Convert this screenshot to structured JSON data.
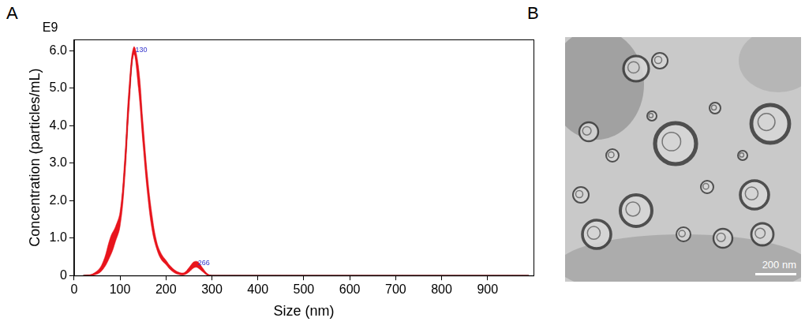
{
  "chart_data": {
    "type": "line",
    "panel": "A",
    "x_label": "Size (nm)",
    "y_label": "Concentration (particles/mL)",
    "y_multiplier": "E9",
    "x": [
      20,
      40,
      60,
      80,
      90,
      100,
      110,
      120,
      130,
      140,
      150,
      160,
      170,
      180,
      190,
      200,
      210,
      220,
      230,
      240,
      250,
      260,
      266,
      270,
      280,
      290,
      300,
      400,
      500,
      600,
      700,
      800,
      900,
      990
    ],
    "series": [
      {
        "color": "#000000",
        "values": [
          0,
          0.02,
          0.2,
          0.8,
          1.1,
          1.5,
          2.8,
          4.8,
          6.0,
          5.3,
          3.8,
          2.4,
          1.4,
          0.8,
          0.5,
          0.35,
          0.2,
          0.1,
          0.05,
          0.05,
          0.15,
          0.28,
          0.3,
          0.28,
          0.15,
          0.03,
          0,
          0,
          0,
          0,
          0,
          0,
          0,
          0
        ],
        "error": {
          "color": "#e8141c",
          "values": [
            0,
            0.02,
            0.08,
            0.25,
            0.2,
            0.2,
            0.3,
            0.3,
            0.1,
            0.3,
            0.3,
            0.25,
            0.2,
            0.1,
            0.08,
            0.06,
            0.05,
            0.04,
            0.03,
            0.03,
            0.06,
            0.08,
            0.08,
            0.08,
            0.05,
            0.02,
            0,
            0,
            0,
            0,
            0,
            0,
            0,
            0
          ]
        }
      }
    ],
    "annotations": [
      {
        "x": 130,
        "y": 6.0,
        "text": "130",
        "color": "#3333cc"
      },
      {
        "x": 266,
        "y": 0.3,
        "text": "266",
        "color": "#3333cc"
      }
    ],
    "xlim": [
      0,
      1000
    ],
    "xticks": [
      0,
      100,
      200,
      300,
      400,
      500,
      600,
      700,
      800,
      900
    ],
    "ylim": [
      0,
      6.3
    ],
    "yticks": [
      0,
      {
        "value": 1,
        "label": "1.0"
      },
      {
        "value": 2,
        "label": "2.0"
      },
      {
        "value": 3,
        "label": "3.0"
      },
      {
        "value": 4,
        "label": "4.0"
      },
      {
        "value": 5,
        "label": "5.0"
      },
      {
        "value": 6,
        "label": "6.0"
      }
    ],
    "grid": false
  },
  "micrograph": {
    "panel": "B",
    "scale_bar": "200 nm"
  }
}
